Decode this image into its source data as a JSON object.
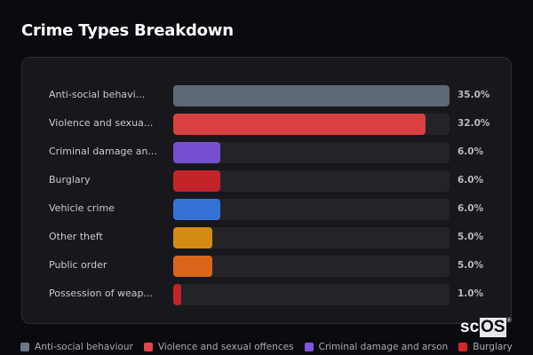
{
  "header": {
    "title": "Crime Types Breakdown"
  },
  "colors": {
    "page_bg": "#0b0b0f",
    "card_bg": "#18181c",
    "track_bg": "#242428"
  },
  "rows": [
    {
      "label": "Anti-social behavi...",
      "full_label": "Anti-social behaviour",
      "value": 35.0,
      "pct": "35.0%",
      "color": "#5c6777"
    },
    {
      "label": "Violence and sexua...",
      "full_label": "Violence and sexual offences",
      "value": 32.0,
      "pct": "32.0%",
      "color": "#d94042"
    },
    {
      "label": "Criminal damage an...",
      "full_label": "Criminal damage and arson",
      "value": 6.0,
      "pct": "6.0%",
      "color": "#7450d0"
    },
    {
      "label": "Burglary",
      "full_label": "Burglary",
      "value": 6.0,
      "pct": "6.0%",
      "color": "#c2242a"
    },
    {
      "label": "Vehicle crime",
      "full_label": "Vehicle crime",
      "value": 6.0,
      "pct": "6.0%",
      "color": "#3572d6"
    },
    {
      "label": "Other theft",
      "full_label": "Other theft",
      "value": 5.0,
      "pct": "5.0%",
      "color": "#d48b14"
    },
    {
      "label": "Public order",
      "full_label": "Public order",
      "value": 5.0,
      "pct": "5.0%",
      "color": "#d9661a"
    },
    {
      "label": "Possession of weap...",
      "full_label": "Possession of weapons",
      "value": 1.0,
      "pct": "1.0%",
      "color": "#c2242a"
    }
  ],
  "legend": [
    {
      "label": "Anti-social behaviour",
      "color": "#6b7788"
    },
    {
      "label": "Violence and sexual offences",
      "color": "#e04446"
    },
    {
      "label": "Criminal damage and arson",
      "color": "#8255e0"
    },
    {
      "label": "Burglary",
      "color": "#d6262c"
    }
  ],
  "watermark": {
    "prefix": "sc",
    "boxed": "OS",
    "reg": "®"
  },
  "chart_data": {
    "type": "bar",
    "orientation": "horizontal",
    "title": "Crime Types Breakdown",
    "categories": [
      "Anti-social behaviour",
      "Violence and sexual offences",
      "Criminal damage and arson",
      "Burglary",
      "Vehicle crime",
      "Other theft",
      "Public order",
      "Possession of weapons"
    ],
    "values": [
      35.0,
      32.0,
      6.0,
      6.0,
      6.0,
      5.0,
      5.0,
      1.0
    ],
    "value_labels": [
      "35.0%",
      "32.0%",
      "6.0%",
      "6.0%",
      "6.0%",
      "5.0%",
      "5.0%",
      "1.0%"
    ],
    "unit": "%",
    "xlabel": "",
    "ylabel": "",
    "grid": false,
    "legend_position": "bottom"
  }
}
